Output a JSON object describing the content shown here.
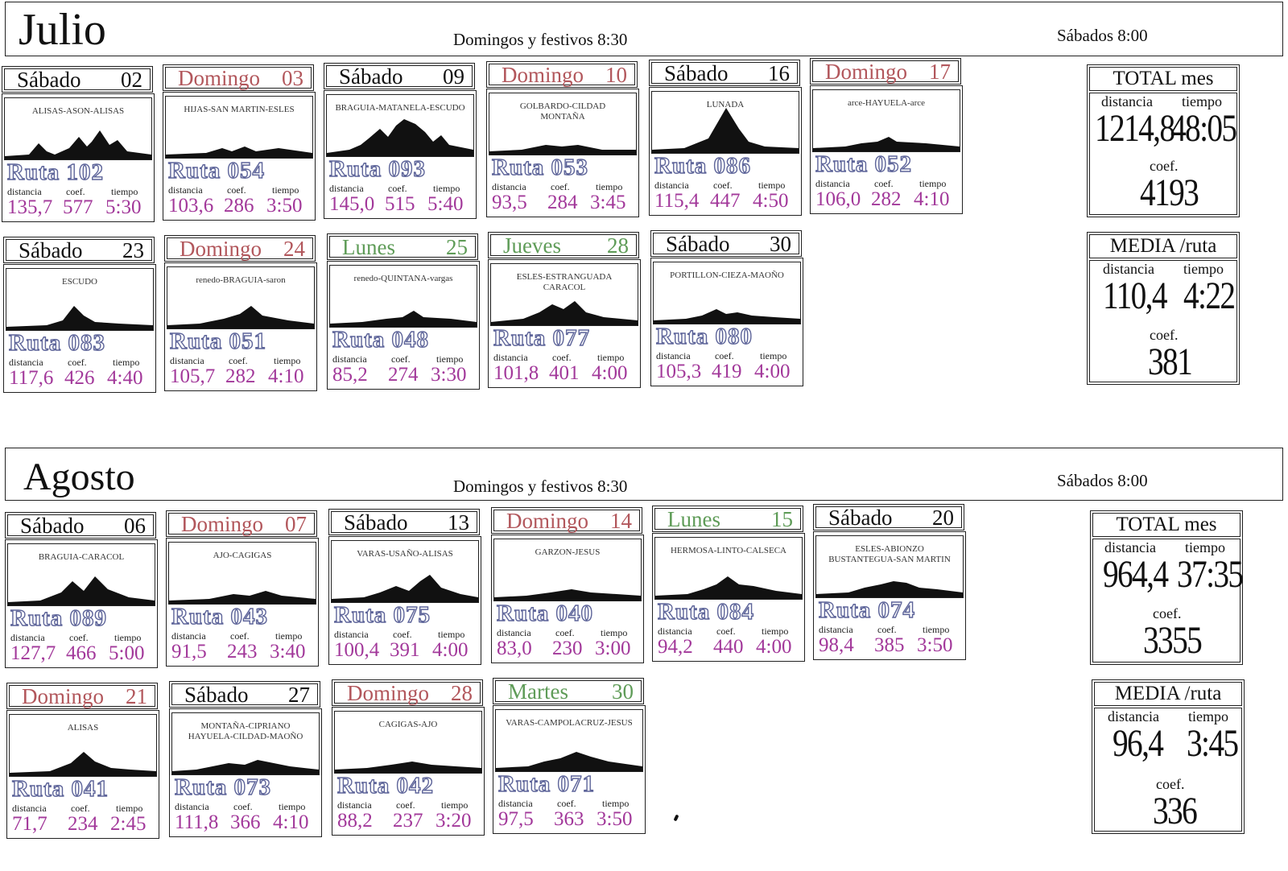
{
  "julio": {
    "month": "Julio",
    "schedule_sun": "Domingos y festivos  8:30",
    "schedule_sat": "Sábados  8:00",
    "cards": [
      {
        "day": "Sábado",
        "num": "02",
        "type": "sab",
        "route": "ALISAS-ASON-ALISAS",
        "ruta": "Ruta 102",
        "dist": "135,7",
        "coef": "577",
        "time": "5:30"
      },
      {
        "day": "Domingo",
        "num": "03",
        "type": "dom",
        "route": "HIJAS-SAN MARTIN-ESLES",
        "ruta": "Ruta 054",
        "dist": "103,6",
        "coef": "286",
        "time": "3:50"
      },
      {
        "day": "Sábado",
        "num": "09",
        "type": "sab",
        "route": "BRAGUIA-MATANELA-ESCUDO",
        "ruta": "Ruta 093",
        "dist": "145,0",
        "coef": "515",
        "time": "5:40"
      },
      {
        "day": "Domingo",
        "num": "10",
        "type": "dom",
        "route": "GOLBARDO-CILDAD\nMONTAÑA",
        "ruta": "Ruta 053",
        "dist": "93,5",
        "coef": "284",
        "time": "3:45"
      },
      {
        "day": "Sábado",
        "num": "16",
        "type": "sab",
        "route": "LUNADA",
        "ruta": "Ruta 086",
        "dist": "115,4",
        "coef": "447",
        "time": "4:50"
      },
      {
        "day": "Domingo",
        "num": "17",
        "type": "dom",
        "route": "arce-HAYUELA-arce",
        "ruta": "Ruta 052",
        "dist": "106,0",
        "coef": "282",
        "time": "4:10"
      },
      {
        "day": "Sábado",
        "num": "23",
        "type": "sab",
        "route": "ESCUDO",
        "ruta": "Ruta 083",
        "dist": "117,6",
        "coef": "426",
        "time": "4:40"
      },
      {
        "day": "Domingo",
        "num": "24",
        "type": "dom",
        "route": "renedo-BRAGUIA-saron",
        "ruta": "Ruta 051",
        "dist": "105,7",
        "coef": "282",
        "time": "4:10"
      },
      {
        "day": "Lunes",
        "num": "25",
        "type": "lab",
        "route": "renedo-QUINTANA-vargas",
        "ruta": "Ruta 048",
        "dist": "85,2",
        "coef": "274",
        "time": "3:30"
      },
      {
        "day": "Jueves",
        "num": "28",
        "type": "lab",
        "route": "ESLES-ESTRANGUADA\nCARACOL",
        "ruta": "Ruta 077",
        "dist": "101,8",
        "coef": "401",
        "time": "4:00"
      },
      {
        "day": "Sábado",
        "num": "30",
        "type": "sab",
        "route": "PORTILLON-CIEZA-MAOÑO",
        "ruta": "Ruta 080",
        "dist": "105,3",
        "coef": "419",
        "time": "4:00"
      }
    ],
    "total": {
      "title": "TOTAL mes",
      "dist_label": "distancia",
      "time_label": "tiempo",
      "dist": "1214,8",
      "time": "48:05",
      "coef_label": "coef.",
      "coef": "4193"
    },
    "media": {
      "title": "MEDIA /ruta",
      "dist_label": "distancia",
      "time_label": "tiempo",
      "dist": "110,4",
      "time": "4:22",
      "coef_label": "coef.",
      "coef": "381"
    }
  },
  "agosto": {
    "month": "Agosto",
    "schedule_sun": "Domingos y festivos  8:30",
    "schedule_sat": "Sábados  8:00",
    "cards": [
      {
        "day": "Sábado",
        "num": "06",
        "type": "sab",
        "route": "BRAGUIA-CARACOL",
        "ruta": "Ruta 089",
        "dist": "127,7",
        "coef": "466",
        "time": "5:00"
      },
      {
        "day": "Domingo",
        "num": "07",
        "type": "dom",
        "route": "AJO-CAGIGAS",
        "ruta": "Ruta 043",
        "dist": "91,5",
        "coef": "243",
        "time": "3:40"
      },
      {
        "day": "Sábado",
        "num": "13",
        "type": "sab",
        "route": "VARAS-USAÑO-ALISAS",
        "ruta": "Ruta 075",
        "dist": "100,4",
        "coef": "391",
        "time": "4:00"
      },
      {
        "day": "Domingo",
        "num": "14",
        "type": "dom",
        "route": "GARZON-JESUS",
        "ruta": "Ruta 040",
        "dist": "83,0",
        "coef": "230",
        "time": "3:00"
      },
      {
        "day": "Lunes",
        "num": "15",
        "type": "lab",
        "route": "HERMOSA-LINTO-CALSECA",
        "ruta": "Ruta 084",
        "dist": "94,2",
        "coef": "440",
        "time": "4:00"
      },
      {
        "day": "Sábado",
        "num": "20",
        "type": "sab",
        "route": "ESLES-ABIONZO\nBUSTANTEGUA-SAN MARTIN",
        "ruta": "Ruta 074",
        "dist": "98,4",
        "coef": "385",
        "time": "3:50"
      },
      {
        "day": "Domingo",
        "num": "21",
        "type": "dom",
        "route": "ALISAS",
        "ruta": "Ruta 041",
        "dist": "71,7",
        "coef": "234",
        "time": "2:45"
      },
      {
        "day": "Sábado",
        "num": "27",
        "type": "sab",
        "route": "MONTAÑA-CIPRIANO\nHAYUELA-CILDAD-MAOÑO",
        "ruta": "Ruta 073",
        "dist": "111,8",
        "coef": "366",
        "time": "4:10"
      },
      {
        "day": "Domingo",
        "num": "28",
        "type": "dom",
        "route": "CAGIGAS-AJO",
        "ruta": "Ruta 042",
        "dist": "88,2",
        "coef": "237",
        "time": "3:20"
      },
      {
        "day": "Martes",
        "num": "30",
        "type": "lab",
        "route": "VARAS-CAMPOLACRUZ-JESUS",
        "ruta": "Ruta 071",
        "dist": "97,5",
        "coef": "363",
        "time": "3:50"
      }
    ],
    "total": {
      "title": "TOTAL mes",
      "dist_label": "distancia",
      "time_label": "tiempo",
      "dist": "964,4",
      "time": "37:35",
      "coef_label": "coef.",
      "coef": "3355"
    },
    "media": {
      "title": "MEDIA /ruta",
      "dist_label": "distancia",
      "time_label": "tiempo",
      "dist": "96,4",
      "time": "3:45",
      "coef_label": "coef.",
      "coef": "336"
    }
  },
  "card_labels": {
    "dist": "distancia",
    "coef": "coef.",
    "time": "tiempo"
  },
  "colors": {
    "sabado": "#111111",
    "domingo": "#b2575c",
    "laborable": "#5f9c58",
    "ruta": "#5d6499",
    "values": "#a2389a"
  }
}
